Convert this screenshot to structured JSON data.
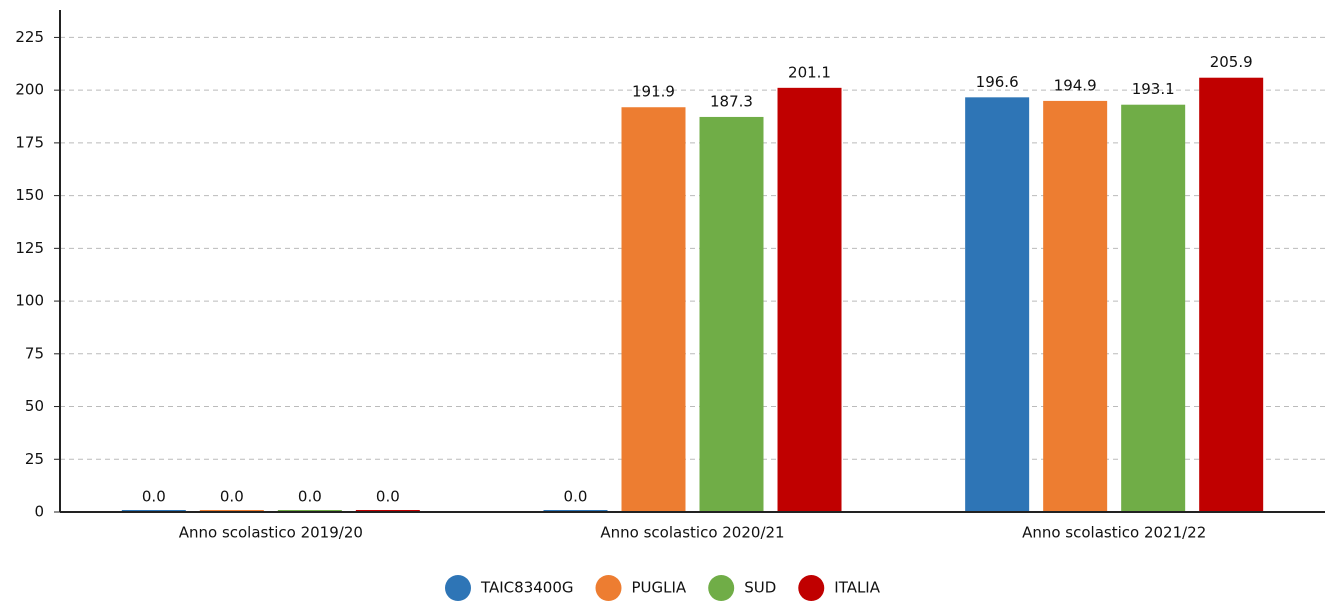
{
  "chart_data": {
    "type": "bar",
    "categories": [
      "Anno scolastico 2019/20",
      "Anno scolastico 2020/21",
      "Anno scolastico 2021/22"
    ],
    "series": [
      {
        "name": "TAIC83400G",
        "color": "#2e75b6",
        "values": [
          0,
          0,
          196.6
        ],
        "value_labels": [
          "0.0",
          "0.0",
          "196.6"
        ]
      },
      {
        "name": "PUGLIA",
        "color": "#ed7d31",
        "values": [
          0,
          191.9,
          194.9
        ],
        "value_labels": [
          "0.0",
          "191.9",
          "194.9"
        ]
      },
      {
        "name": "SUD",
        "color": "#70ad47",
        "values": [
          0,
          187.3,
          193.1
        ],
        "value_labels": [
          "0.0",
          "187.3",
          "193.1"
        ]
      },
      {
        "name": "ITALIA",
        "color": "#c00000",
        "values": [
          0,
          201.1,
          205.9
        ],
        "value_labels": [
          "0.0",
          "201.1",
          "205.9"
        ]
      }
    ],
    "ylim": [
      0,
      238
    ],
    "yticks": [
      0,
      25,
      50,
      75,
      100,
      125,
      150,
      175,
      200,
      225
    ],
    "grid": true,
    "legend": "bottom"
  }
}
